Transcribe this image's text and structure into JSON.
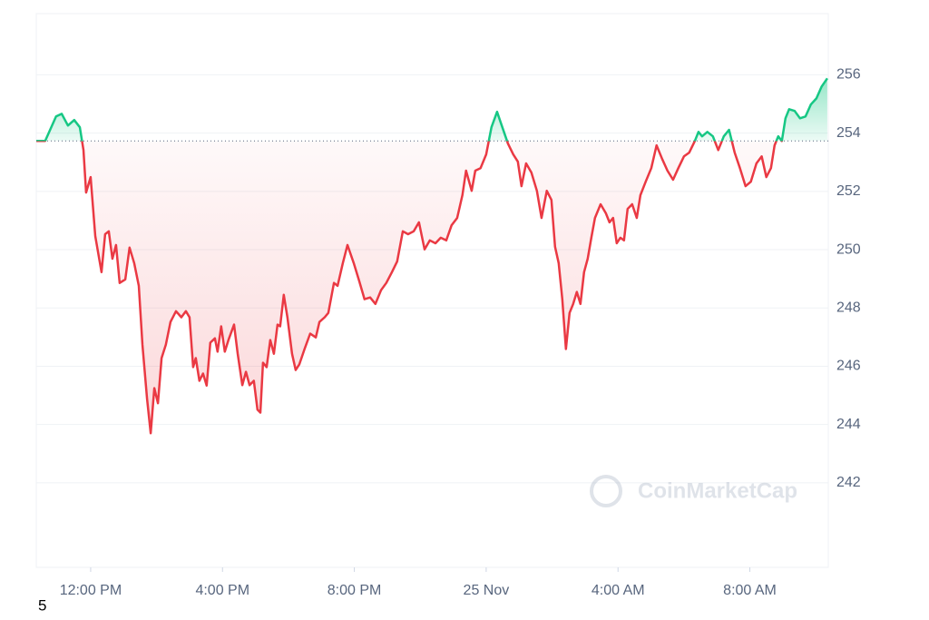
{
  "chart_data": {
    "type": "line",
    "x": [
      10.35,
      10.62,
      10.95,
      11.12,
      11.31,
      11.5,
      11.67,
      11.78,
      11.86,
      12.0,
      12.14,
      12.33,
      12.44,
      12.55,
      12.66,
      12.77,
      12.88,
      13.05,
      13.18,
      13.32,
      13.46,
      13.57,
      13.71,
      13.82,
      13.93,
      14.04,
      14.15,
      14.28,
      14.42,
      14.59,
      14.75,
      14.89,
      15.0,
      15.11,
      15.19,
      15.3,
      15.41,
      15.52,
      15.63,
      15.77,
      15.85,
      15.96,
      16.07,
      16.18,
      16.35,
      16.46,
      16.6,
      16.71,
      16.82,
      16.95,
      17.06,
      17.15,
      17.23,
      17.34,
      17.45,
      17.56,
      17.67,
      17.75,
      17.86,
      17.97,
      18.11,
      18.22,
      18.33,
      18.49,
      18.66,
      18.83,
      18.94,
      19.1,
      19.21,
      19.38,
      19.49,
      19.65,
      19.79,
      19.98,
      20.15,
      20.31,
      20.48,
      20.64,
      20.81,
      20.97,
      21.14,
      21.3,
      21.47,
      21.63,
      21.8,
      21.96,
      22.13,
      22.29,
      22.46,
      22.62,
      22.79,
      22.95,
      23.12,
      23.28,
      23.39,
      23.56,
      23.67,
      23.83,
      24.0,
      24.16,
      24.33,
      24.49,
      24.66,
      24.82,
      24.96,
      25.07,
      25.21,
      25.37,
      25.54,
      25.68,
      25.84,
      25.98,
      26.09,
      26.2,
      26.31,
      26.42,
      26.53,
      26.64,
      26.75,
      26.86,
      26.97,
      27.08,
      27.19,
      27.3,
      27.47,
      27.63,
      27.74,
      27.85,
      27.96,
      28.07,
      28.18,
      28.29,
      28.43,
      28.57,
      28.68,
      28.84,
      29.01,
      29.17,
      29.34,
      29.5,
      29.67,
      29.83,
      30.0,
      30.16,
      30.33,
      30.44,
      30.55,
      30.71,
      30.88,
      31.04,
      31.21,
      31.37,
      31.54,
      31.7,
      31.87,
      32.03,
      32.2,
      32.36,
      32.5,
      32.64,
      32.75,
      32.86,
      32.97,
      33.08,
      33.19,
      33.36,
      33.52,
      33.69,
      33.85,
      34.02,
      34.18,
      34.35
    ],
    "values": [
      253.73,
      253.73,
      254.57,
      254.66,
      254.26,
      254.45,
      254.2,
      253.42,
      251.96,
      252.49,
      250.47,
      249.23,
      250.53,
      250.63,
      249.69,
      250.16,
      248.86,
      248.98,
      250.07,
      249.54,
      248.76,
      246.74,
      244.88,
      243.7,
      245.25,
      244.73,
      246.28,
      246.74,
      247.52,
      247.89,
      247.68,
      247.89,
      247.68,
      245.97,
      246.28,
      245.5,
      245.75,
      245.34,
      246.81,
      246.96,
      246.5,
      247.37,
      246.5,
      246.9,
      247.43,
      246.43,
      245.35,
      245.81,
      245.35,
      245.5,
      244.51,
      244.41,
      246.12,
      245.97,
      246.9,
      246.43,
      247.43,
      247.37,
      248.45,
      247.68,
      246.43,
      245.87,
      246.06,
      246.59,
      247.12,
      246.99,
      247.52,
      247.68,
      247.83,
      248.86,
      248.76,
      249.54,
      250.16,
      249.54,
      248.92,
      248.3,
      248.36,
      248.14,
      248.61,
      248.86,
      249.23,
      249.6,
      250.63,
      250.53,
      250.63,
      250.94,
      250.01,
      250.32,
      250.22,
      250.41,
      250.32,
      250.84,
      251.09,
      251.87,
      252.71,
      252.02,
      252.71,
      252.8,
      253.27,
      254.2,
      254.73,
      254.2,
      253.64,
      253.27,
      253.02,
      252.18,
      252.96,
      252.65,
      252.02,
      251.09,
      252.02,
      251.71,
      250.1,
      249.54,
      248.3,
      246.59,
      247.83,
      248.14,
      248.55,
      248.14,
      249.23,
      249.69,
      250.41,
      251.09,
      251.56,
      251.25,
      250.94,
      251.09,
      250.22,
      250.41,
      250.32,
      251.4,
      251.56,
      251.09,
      251.87,
      252.33,
      252.8,
      253.58,
      253.11,
      252.71,
      252.4,
      252.8,
      253.2,
      253.33,
      253.73,
      254.04,
      253.89,
      254.04,
      253.89,
      253.42,
      253.89,
      254.11,
      253.33,
      252.8,
      252.18,
      252.33,
      252.96,
      253.2,
      252.49,
      252.8,
      253.58,
      253.89,
      253.73,
      254.51,
      254.82,
      254.76,
      254.51,
      254.57,
      254.98,
      255.19,
      255.6,
      255.88
    ],
    "baseline": 253.73,
    "color_up": "#16c784",
    "color_down": "#ea3943",
    "xlim": [
      10.35,
      34.38
    ],
    "xticks": [
      {
        "value": 12,
        "label": "12:00 PM"
      },
      {
        "value": 16,
        "label": "4:00 PM"
      },
      {
        "value": 20,
        "label": "8:00 PM"
      },
      {
        "value": 24,
        "label": "25 Nov"
      },
      {
        "value": 28,
        "label": "4:00 AM"
      },
      {
        "value": 32,
        "label": "8:00 AM"
      }
    ],
    "ylim": [
      239.1,
      258.1
    ],
    "yticks": [
      242,
      244,
      246,
      248,
      250,
      252,
      254,
      256
    ],
    "grid": true,
    "watermark": "CoinMarketCap",
    "footnote": "5"
  }
}
